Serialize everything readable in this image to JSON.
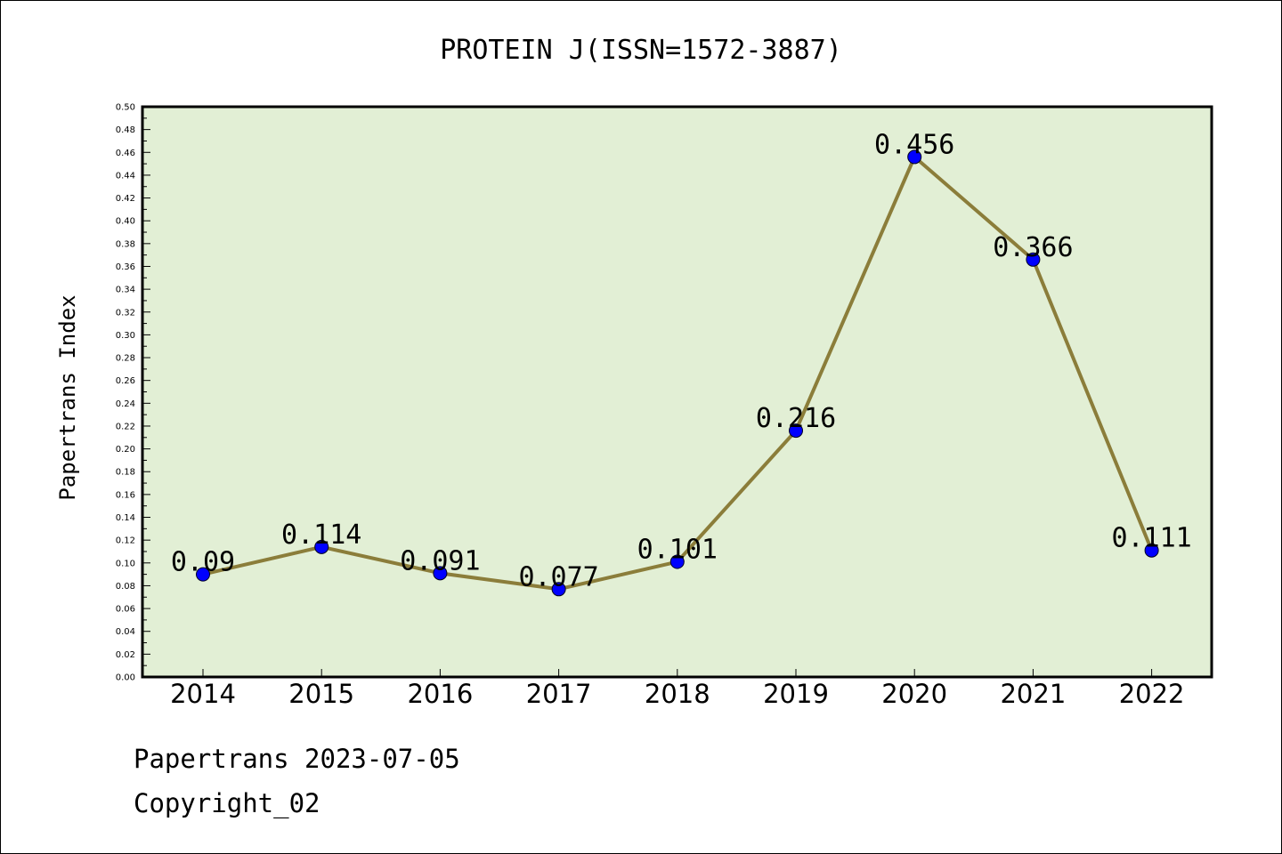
{
  "chart_data": {
    "type": "line",
    "title": "PROTEIN J(ISSN=1572-3887)",
    "xlabel": "",
    "ylabel": "Papertrans Index",
    "categories": [
      "2014",
      "2015",
      "2016",
      "2017",
      "2018",
      "2019",
      "2020",
      "2021",
      "2022"
    ],
    "values": [
      0.09,
      0.114,
      0.091,
      0.077,
      0.101,
      0.216,
      0.456,
      0.366,
      0.111
    ],
    "value_labels": [
      "0.09",
      "0.114",
      "0.091",
      "0.077",
      "0.101",
      "0.216",
      "0.456",
      "0.366",
      "0.111"
    ],
    "ylim": [
      0,
      0.5
    ],
    "y_ticks": [
      "0.00",
      "0.02",
      "0.04",
      "0.06",
      "0.08",
      "0.10",
      "0.12",
      "0.14",
      "0.16",
      "0.18",
      "0.20",
      "0.22",
      "0.24",
      "0.26",
      "0.28",
      "0.30",
      "0.32",
      "0.34",
      "0.36",
      "0.38",
      "0.40",
      "0.42",
      "0.44",
      "0.46",
      "0.48",
      "0.50"
    ],
    "grid": false,
    "legend": "none",
    "colors": {
      "plot_background": "#e2efd5",
      "line": "#8b7d3a",
      "marker": "#0000ff",
      "axis": "#000000"
    }
  },
  "footer": {
    "line1": "Papertrans 2023-07-05",
    "line2": "Copyright_02"
  }
}
